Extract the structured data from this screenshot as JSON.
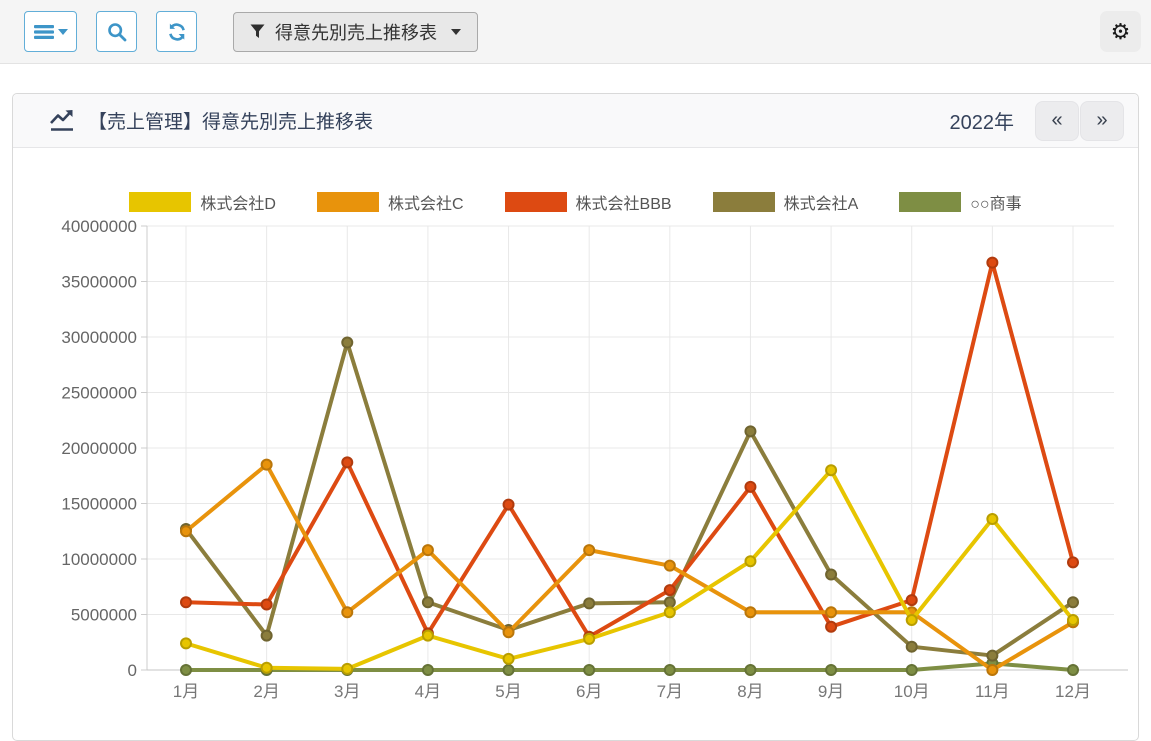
{
  "toolbar": {
    "menu_button": "main-menu",
    "search_button": "search",
    "refresh_button": "refresh",
    "filter_button_label": "得意先別売上推移表",
    "settings_button": "settings"
  },
  "panel": {
    "title": "【売上管理】得意先別売上推移表",
    "year_label": "2022年",
    "prev_label": "«",
    "next_label": "»"
  },
  "chart_data": {
    "type": "line",
    "title": "得意先別売上推移表 2022年",
    "categories": [
      "1月",
      "2月",
      "3月",
      "4月",
      "5月",
      "6月",
      "7月",
      "8月",
      "9月",
      "10月",
      "11月",
      "12月"
    ],
    "series": [
      {
        "name": "株式会社D",
        "color": "#e7c500",
        "values": [
          2400000,
          200000,
          100000,
          3100000,
          1000000,
          2800000,
          5200000,
          9800000,
          18000000,
          4500000,
          13600000,
          4500000
        ]
      },
      {
        "name": "株式会社C",
        "color": "#e8930c",
        "values": [
          12500000,
          18500000,
          5200000,
          10800000,
          3400000,
          10800000,
          9400000,
          5200000,
          5200000,
          5200000,
          0,
          4300000
        ]
      },
      {
        "name": "株式会社BBB",
        "color": "#dd4a12",
        "values": [
          6100000,
          5900000,
          18700000,
          3300000,
          14900000,
          3000000,
          7200000,
          16500000,
          3900000,
          6300000,
          36700000,
          9700000
        ]
      },
      {
        "name": "株式会社A",
        "color": "#8b7d3c",
        "values": [
          12700000,
          3100000,
          29500000,
          6100000,
          3600000,
          6000000,
          6100000,
          21500000,
          8600000,
          2100000,
          1300000,
          6100000
        ]
      },
      {
        "name": "○○商事",
        "color": "#7e8e44",
        "values": [
          0,
          0,
          0,
          0,
          0,
          0,
          0,
          0,
          0,
          0,
          600000,
          0
        ]
      }
    ],
    "xlabel": "",
    "ylabel": "",
    "ylim": [
      0,
      40000000
    ],
    "yticks": [
      0,
      5000000,
      10000000,
      15000000,
      20000000,
      25000000,
      30000000,
      35000000,
      40000000
    ],
    "grid": true,
    "legend_position": "top"
  }
}
